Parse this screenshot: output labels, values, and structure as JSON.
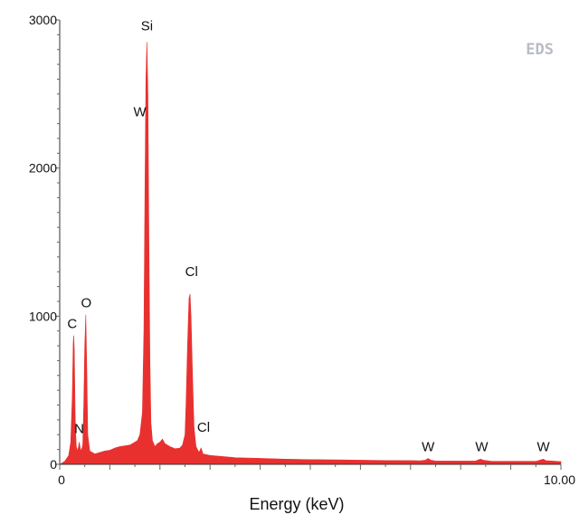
{
  "chart_data": {
    "type": "area",
    "tag": "EDS",
    "xlabel": "Energy (keV)",
    "ylabel": "",
    "xlim": [
      0,
      10.0
    ],
    "ylim": [
      0,
      3000
    ],
    "x_tick_labels": [
      {
        "x": 0,
        "label": "0"
      },
      {
        "x": 10.0,
        "label": "10.00"
      }
    ],
    "y_tick_labels": [
      {
        "y": 0,
        "label": "0"
      },
      {
        "y": 1000,
        "label": "1000"
      },
      {
        "y": 2000,
        "label": "2000"
      },
      {
        "y": 3000,
        "label": "3000"
      }
    ],
    "fill_color": "#e8312f",
    "series": [
      {
        "values": [
          [
            0.0,
            0
          ],
          [
            0.1,
            20
          ],
          [
            0.18,
            60
          ],
          [
            0.22,
            150
          ],
          [
            0.25,
            450
          ],
          [
            0.27,
            820
          ],
          [
            0.28,
            870
          ],
          [
            0.29,
            780
          ],
          [
            0.31,
            300
          ],
          [
            0.33,
            120
          ],
          [
            0.36,
            90
          ],
          [
            0.39,
            150
          ],
          [
            0.41,
            110
          ],
          [
            0.43,
            90
          ],
          [
            0.46,
            130
          ],
          [
            0.48,
            400
          ],
          [
            0.5,
            800
          ],
          [
            0.52,
            1010
          ],
          [
            0.54,
            650
          ],
          [
            0.56,
            200
          ],
          [
            0.6,
            90
          ],
          [
            0.7,
            70
          ],
          [
            0.8,
            80
          ],
          [
            0.9,
            90
          ],
          [
            1.0,
            95
          ],
          [
            1.1,
            110
          ],
          [
            1.2,
            120
          ],
          [
            1.3,
            125
          ],
          [
            1.4,
            130
          ],
          [
            1.5,
            150
          ],
          [
            1.55,
            160
          ],
          [
            1.6,
            200
          ],
          [
            1.65,
            350
          ],
          [
            1.68,
            900
          ],
          [
            1.7,
            1800
          ],
          [
            1.72,
            2600
          ],
          [
            1.74,
            2850
          ],
          [
            1.76,
            2500
          ],
          [
            1.78,
            1500
          ],
          [
            1.8,
            700
          ],
          [
            1.82,
            280
          ],
          [
            1.85,
            160
          ],
          [
            1.9,
            120
          ],
          [
            1.95,
            140
          ],
          [
            2.0,
            150
          ],
          [
            2.05,
            170
          ],
          [
            2.1,
            140
          ],
          [
            2.2,
            120
          ],
          [
            2.3,
            105
          ],
          [
            2.4,
            110
          ],
          [
            2.45,
            130
          ],
          [
            2.5,
            200
          ],
          [
            2.52,
            400
          ],
          [
            2.55,
            800
          ],
          [
            2.58,
            1120
          ],
          [
            2.6,
            1150
          ],
          [
            2.62,
            1000
          ],
          [
            2.65,
            600
          ],
          [
            2.68,
            250
          ],
          [
            2.72,
            120
          ],
          [
            2.78,
            80
          ],
          [
            2.82,
            110
          ],
          [
            2.86,
            70
          ],
          [
            3.0,
            60
          ],
          [
            3.5,
            45
          ],
          [
            4.0,
            40
          ],
          [
            4.5,
            35
          ],
          [
            5.0,
            32
          ],
          [
            5.5,
            30
          ],
          [
            6.0,
            28
          ],
          [
            6.5,
            26
          ],
          [
            7.0,
            25
          ],
          [
            7.2,
            24
          ],
          [
            7.3,
            28
          ],
          [
            7.35,
            40
          ],
          [
            7.4,
            28
          ],
          [
            7.5,
            23
          ],
          [
            8.0,
            22
          ],
          [
            8.3,
            22
          ],
          [
            8.35,
            30
          ],
          [
            8.4,
            35
          ],
          [
            8.45,
            28
          ],
          [
            8.6,
            21
          ],
          [
            9.0,
            20
          ],
          [
            9.5,
            20
          ],
          [
            9.6,
            30
          ],
          [
            9.65,
            35
          ],
          [
            9.7,
            25
          ],
          [
            10.0,
            18
          ]
        ]
      }
    ],
    "annotations": [
      {
        "text": "Si",
        "x": 1.74,
        "y": 2930
      },
      {
        "text": "W",
        "x": 1.6,
        "y": 2350
      },
      {
        "text": "Cl",
        "x": 2.63,
        "y": 1270
      },
      {
        "text": "Cl",
        "x": 2.87,
        "y": 220
      },
      {
        "text": "C",
        "x": 0.25,
        "y": 920
      },
      {
        "text": "O",
        "x": 0.53,
        "y": 1060
      },
      {
        "text": "N",
        "x": 0.39,
        "y": 210
      },
      {
        "text": "W",
        "x": 7.35,
        "y": 90
      },
      {
        "text": "W",
        "x": 8.42,
        "y": 90
      },
      {
        "text": "W",
        "x": 9.65,
        "y": 90
      }
    ]
  }
}
